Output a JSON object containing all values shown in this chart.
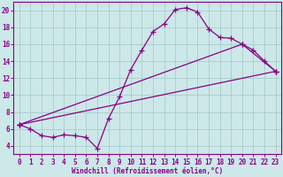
{
  "xlabel": "Windchill (Refroidissement éolien,°C)",
  "background_color": "#cce8e8",
  "grid_color": "#aacccc",
  "line_color": "#880088",
  "xlim": [
    -0.5,
    23.5
  ],
  "ylim": [
    3.0,
    21.0
  ],
  "yticks": [
    4,
    6,
    8,
    10,
    12,
    14,
    16,
    18,
    20
  ],
  "xticks": [
    0,
    1,
    2,
    3,
    4,
    5,
    6,
    7,
    8,
    9,
    10,
    11,
    12,
    13,
    14,
    15,
    16,
    17,
    18,
    19,
    20,
    21,
    22,
    23
  ],
  "line1_x": [
    0,
    1,
    2,
    3,
    4,
    5,
    6,
    7,
    8,
    9,
    10,
    11,
    12,
    13,
    14,
    15,
    16,
    17,
    18,
    19,
    20,
    21,
    22,
    23
  ],
  "line1_y": [
    6.5,
    6.0,
    5.2,
    5.0,
    5.3,
    5.2,
    5.0,
    3.7,
    7.2,
    9.8,
    13.0,
    15.3,
    17.5,
    18.4,
    20.1,
    20.3,
    19.8,
    17.8,
    16.8,
    16.7,
    16.0,
    15.3,
    14.0,
    12.8
  ],
  "line2_x": [
    0,
    23
  ],
  "line2_y": [
    6.5,
    12.8
  ],
  "line3_x": [
    0,
    20,
    23
  ],
  "line3_y": [
    6.5,
    16.0,
    12.8
  ]
}
